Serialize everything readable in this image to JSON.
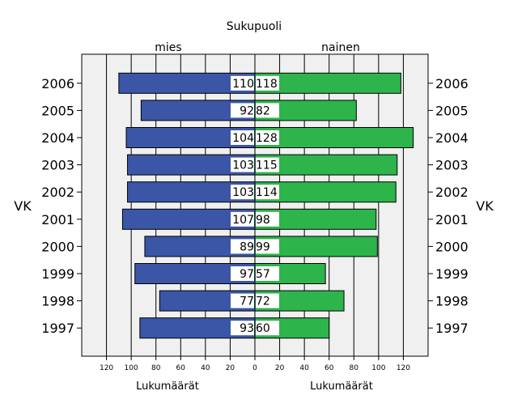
{
  "chart_data": {
    "type": "bar",
    "orientation": "horizontal",
    "layout": "population-pyramid",
    "title": "Sukupuoli",
    "categories": [
      "2006",
      "2005",
      "2004",
      "2003",
      "2002",
      "2001",
      "2000",
      "1999",
      "1998",
      "1997"
    ],
    "category_axis_label": "VK",
    "series": [
      {
        "name": "mies",
        "side": "left",
        "color": "#3b56a6",
        "values": [
          110,
          92,
          104,
          103,
          103,
          107,
          89,
          97,
          77,
          93
        ]
      },
      {
        "name": "nainen",
        "side": "right",
        "color": "#2db44a",
        "values": [
          118,
          82,
          128,
          115,
          114,
          98,
          99,
          57,
          72,
          60
        ]
      }
    ],
    "value_axis": {
      "label": "Lukumäärät",
      "range": [
        0,
        140
      ],
      "ticks": [
        120,
        100,
        80,
        60,
        40,
        20,
        0
      ]
    },
    "grid": true,
    "plot_background": "#f0f0f0",
    "data_labels": true
  }
}
